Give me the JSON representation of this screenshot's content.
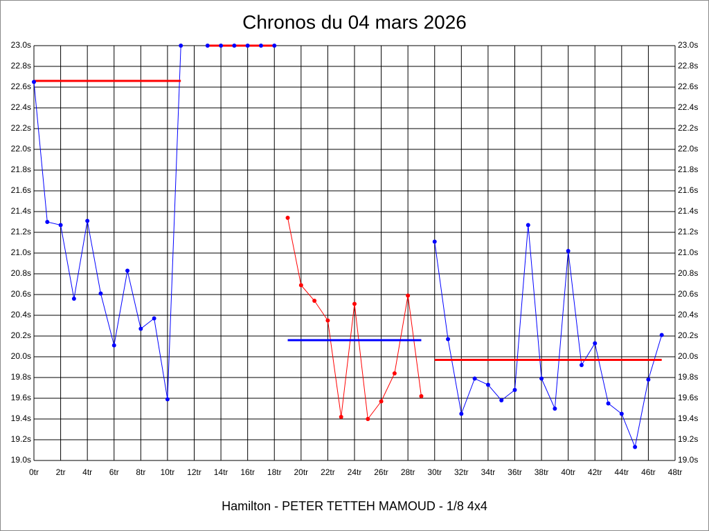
{
  "chart_data": {
    "type": "line",
    "title": "Chronos du 04 mars 2026",
    "xlabel": "Hamilton - PETER TETTEH MAMOUD - 1/8 4x4",
    "xlim": [
      0,
      48
    ],
    "ylim": [
      19,
      23
    ],
    "grid": true,
    "xticks": [
      {
        "value": 0,
        "label": "0tr"
      },
      {
        "value": 2,
        "label": "2tr"
      },
      {
        "value": 4,
        "label": "4tr"
      },
      {
        "value": 6,
        "label": "6tr"
      },
      {
        "value": 8,
        "label": "8tr"
      },
      {
        "value": 10,
        "label": "10tr"
      },
      {
        "value": 12,
        "label": "12tr"
      },
      {
        "value": 14,
        "label": "14tr"
      },
      {
        "value": 16,
        "label": "16tr"
      },
      {
        "value": 18,
        "label": "18tr"
      },
      {
        "value": 20,
        "label": "20tr"
      },
      {
        "value": 22,
        "label": "22tr"
      },
      {
        "value": 24,
        "label": "24tr"
      },
      {
        "value": 26,
        "label": "26tr"
      },
      {
        "value": 28,
        "label": "28tr"
      },
      {
        "value": 30,
        "label": "30tr"
      },
      {
        "value": 32,
        "label": "32tr"
      },
      {
        "value": 34,
        "label": "34tr"
      },
      {
        "value": 36,
        "label": "36tr"
      },
      {
        "value": 38,
        "label": "38tr"
      },
      {
        "value": 40,
        "label": "40tr"
      },
      {
        "value": 42,
        "label": "42tr"
      },
      {
        "value": 44,
        "label": "44tr"
      },
      {
        "value": 46,
        "label": "46tr"
      },
      {
        "value": 48,
        "label": "48tr"
      }
    ],
    "yticks": [
      {
        "value": 19.0,
        "label": "19.0s"
      },
      {
        "value": 19.2,
        "label": "19.2s"
      },
      {
        "value": 19.4,
        "label": "19.4s"
      },
      {
        "value": 19.6,
        "label": "19.6s"
      },
      {
        "value": 19.8,
        "label": "19.8s"
      },
      {
        "value": 20.0,
        "label": "20.0s"
      },
      {
        "value": 20.2,
        "label": "20.2s"
      },
      {
        "value": 20.4,
        "label": "20.4s"
      },
      {
        "value": 20.6,
        "label": "20.6s"
      },
      {
        "value": 20.8,
        "label": "20.8s"
      },
      {
        "value": 21.0,
        "label": "21.0s"
      },
      {
        "value": 21.2,
        "label": "21.2s"
      },
      {
        "value": 21.4,
        "label": "21.4s"
      },
      {
        "value": 21.6,
        "label": "21.6s"
      },
      {
        "value": 21.8,
        "label": "21.8s"
      },
      {
        "value": 22.0,
        "label": "22.0s"
      },
      {
        "value": 22.2,
        "label": "22.2s"
      },
      {
        "value": 22.4,
        "label": "22.4s"
      },
      {
        "value": 22.6,
        "label": "22.6s"
      },
      {
        "value": 22.8,
        "label": "22.8s"
      },
      {
        "value": 23.0,
        "label": "23.0s"
      }
    ],
    "series": [
      {
        "color": "#0000ff",
        "x": [
          0,
          1,
          2,
          3,
          4,
          5,
          6,
          7,
          8,
          9,
          10,
          11
        ],
        "values": [
          22.65,
          21.3,
          21.27,
          20.56,
          21.31,
          20.61,
          20.11,
          20.83,
          20.27,
          20.37,
          19.59,
          23.0
        ]
      },
      {
        "color": "#0000ff",
        "x": [
          13,
          14,
          15,
          16,
          17,
          18
        ],
        "values": [
          23.0,
          23.0,
          23.0,
          23.0,
          23.0,
          23.0
        ]
      },
      {
        "color": "#ff0000",
        "x": [
          19,
          20,
          21,
          22,
          23,
          24,
          25,
          26,
          27,
          28,
          29
        ],
        "values": [
          21.34,
          20.69,
          20.54,
          20.35,
          19.42,
          20.51,
          19.4,
          19.57,
          19.84,
          20.59,
          19.62
        ]
      },
      {
        "color": "#0000ff",
        "x": [
          30,
          31,
          32,
          33,
          34,
          35,
          36,
          37,
          38,
          39,
          40,
          41,
          42,
          43,
          44,
          45,
          46,
          47
        ],
        "values": [
          21.11,
          20.17,
          19.45,
          19.79,
          19.73,
          19.58,
          19.68,
          21.27,
          19.79,
          19.5,
          21.02,
          19.92,
          20.13,
          19.55,
          19.45,
          19.13,
          19.78,
          20.21
        ]
      }
    ],
    "reference_lines": [
      {
        "color": "#ff0000",
        "x": [
          0,
          11
        ],
        "value": 22.66
      },
      {
        "color": "#ff0000",
        "x": [
          13,
          18
        ],
        "value": 23.0
      },
      {
        "color": "#0000ff",
        "x": [
          19,
          29
        ],
        "value": 20.16
      },
      {
        "color": "#ff0000",
        "x": [
          30,
          47
        ],
        "value": 19.97
      }
    ]
  }
}
